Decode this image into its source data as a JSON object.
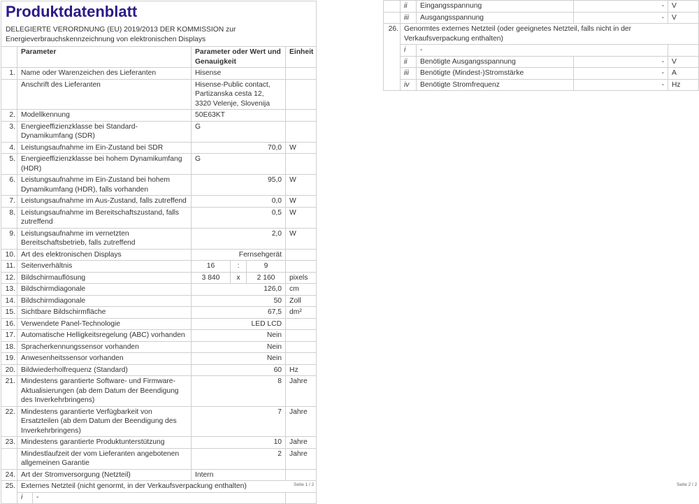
{
  "title": "Produktdatenblatt",
  "subtitle_line1": "DELEGIERTE VERORDNUNG (EU) 2019/2013 DER KOMMISSION zur",
  "subtitle_line2": "Energieverbrauchskennzeichnung von elektronischen Displays",
  "header": {
    "parameter": "Parameter",
    "value": "Parameter oder Wert und Genauigkeit",
    "unit": "Einheit"
  },
  "rows": [
    {
      "num": "1.",
      "param": "Name oder Warenzeichen des Lieferanten",
      "value": "Hisense",
      "unit": "",
      "align": "l"
    },
    {
      "num": "",
      "param": "Anschrift des Lieferanten",
      "value": "Hisense-Public contact, Partizanska cesta 12, 3320 Velenje, Slovenija",
      "unit": "",
      "align": "l"
    },
    {
      "num": "2.",
      "param": "Modellkennung",
      "value": "50E63KT",
      "unit": "",
      "align": "l"
    },
    {
      "num": "3.",
      "param": "Energieeffizienzklasse bei Standard-Dynamikumfang (SDR)",
      "value": "G",
      "unit": "",
      "align": "l"
    },
    {
      "num": "4.",
      "param": "Leistungsaufnahme im Ein-Zustand bei SDR",
      "value": "70,0",
      "unit": "W",
      "align": "r"
    },
    {
      "num": "5.",
      "param": "Energieeffizienzklasse bei hohem Dynamikumfang (HDR)",
      "value": "G",
      "unit": "",
      "align": "l"
    },
    {
      "num": "6.",
      "param": "Leistungsaufnahme im Ein-Zustand bei hohem Dynamikumfang (HDR), falls vorhanden",
      "value": "95,0",
      "unit": "W",
      "align": "r"
    },
    {
      "num": "7.",
      "param": "Leistungsaufnahme im Aus-Zustand, falls zutreffend",
      "value": "0,0",
      "unit": "W",
      "align": "r"
    },
    {
      "num": "8.",
      "param": "Leistungsaufnahme im Bereitschaftszustand, falls zutreffend",
      "value": "0,5",
      "unit": "W",
      "align": "r"
    },
    {
      "num": "9.",
      "param": "Leistungsaufnahme im vernetzten Bereitschaftsbetrieb, falls zutreffend",
      "value": "2,0",
      "unit": "W",
      "align": "r"
    },
    {
      "num": "10.",
      "param": "Art des elektronischen Displays",
      "value": "Fernsehgerät",
      "unit": "",
      "align": "r"
    },
    {
      "num": "11.",
      "param": "Seitenverhältnis",
      "split": [
        "16",
        ":",
        "9"
      ],
      "unit": ""
    },
    {
      "num": "12.",
      "param": "Bildschirmauflösung",
      "split": [
        "3 840",
        "x",
        "2 160"
      ],
      "unit": "pixels"
    },
    {
      "num": "13.",
      "param": "Bildschirmdiagonale",
      "value": "126,0",
      "unit": "cm",
      "align": "r"
    },
    {
      "num": "14.",
      "param": "Bildschirmdiagonale",
      "value": "50",
      "unit": "Zoll",
      "align": "r"
    },
    {
      "num": "15.",
      "param": "Sichtbare Bildschirmfläche",
      "value": "67,5",
      "unit": "dm²",
      "align": "r"
    },
    {
      "num": "16.",
      "param": "Verwendete Panel-Technologie",
      "value": "LED LCD",
      "unit": "",
      "align": "r"
    },
    {
      "num": "17.",
      "param": "Automatische Helligkeitsregelung (ABC) vorhanden",
      "value": "Nein",
      "unit": "",
      "align": "r"
    },
    {
      "num": "18.",
      "param": "Spracherkennungssensor vorhanden",
      "value": "Nein",
      "unit": "",
      "align": "r"
    },
    {
      "num": "19.",
      "param": "Anwesenheitssensor vorhanden",
      "value": "Nein",
      "unit": "",
      "align": "r"
    },
    {
      "num": "20.",
      "param": "Bildwiederholfrequenz (Standard)",
      "value": "60",
      "unit": "Hz",
      "align": "r"
    },
    {
      "num": "21.",
      "param": "Mindestens garantierte Software- und Firmware-Aktualisierungen (ab dem Datum der Beendigung des Inverkehrbringens)",
      "value": "8",
      "unit": "Jahre",
      "align": "r"
    },
    {
      "num": "22.",
      "param": "Mindestens garantierte Verfügbarkeit von Ersatzteilen (ab dem Datum der Beendigung des Inverkehrbringens)",
      "value": "7",
      "unit": "Jahre",
      "align": "r"
    },
    {
      "num": "23.",
      "param": "Mindestens garantierte Produktunterstützung",
      "value": "10",
      "unit": "Jahre",
      "align": "r"
    },
    {
      "num": "",
      "param": "Mindestlaufzeit der vom Lieferanten angebotenen allgemeinen Garantie",
      "value": "2",
      "unit": "Jahre",
      "align": "r"
    },
    {
      "num": "24.",
      "param": "Art der Stromversorgung (Netzteil)",
      "value": "Intern",
      "unit": "",
      "align": "l"
    }
  ],
  "row25": {
    "num": "25.",
    "label": "Externes Netzteil (nicht genormt, in der Verkaufsverpackung enthalten)",
    "sub": [
      {
        "idx": "i",
        "label": "-"
      }
    ]
  },
  "page2": {
    "pre": [
      {
        "idx": "ii",
        "label": "Eingangsspannung",
        "value": "-",
        "unit": "V"
      },
      {
        "idx": "iii",
        "label": "Ausgangsspannung",
        "value": "-",
        "unit": "V"
      }
    ],
    "row26": {
      "num": "26.",
      "label": "Genormtes externes Netzteil (oder geeignetes Netzteil, falls nicht in der Verkaufsverpackung enthalten)"
    },
    "i": {
      "idx": "i",
      "label": "-"
    },
    "sub": [
      {
        "idx": "ii",
        "label": "Benötigte Ausgangsspannung",
        "value": "-",
        "unit": "V"
      },
      {
        "idx": "iii",
        "label": "Benötigte (Mindest-)Stromstärke",
        "value": "-",
        "unit": "A"
      },
      {
        "idx": "iv",
        "label": "Benötigte Stromfrequenz",
        "value": "-",
        "unit": "Hz"
      }
    ]
  },
  "footer": {
    "page1": "Seite 1 / 2",
    "page2": "Seite 2 / 2"
  },
  "colors": {
    "title": "#2a1a8a",
    "border": "#cfcfcf"
  }
}
